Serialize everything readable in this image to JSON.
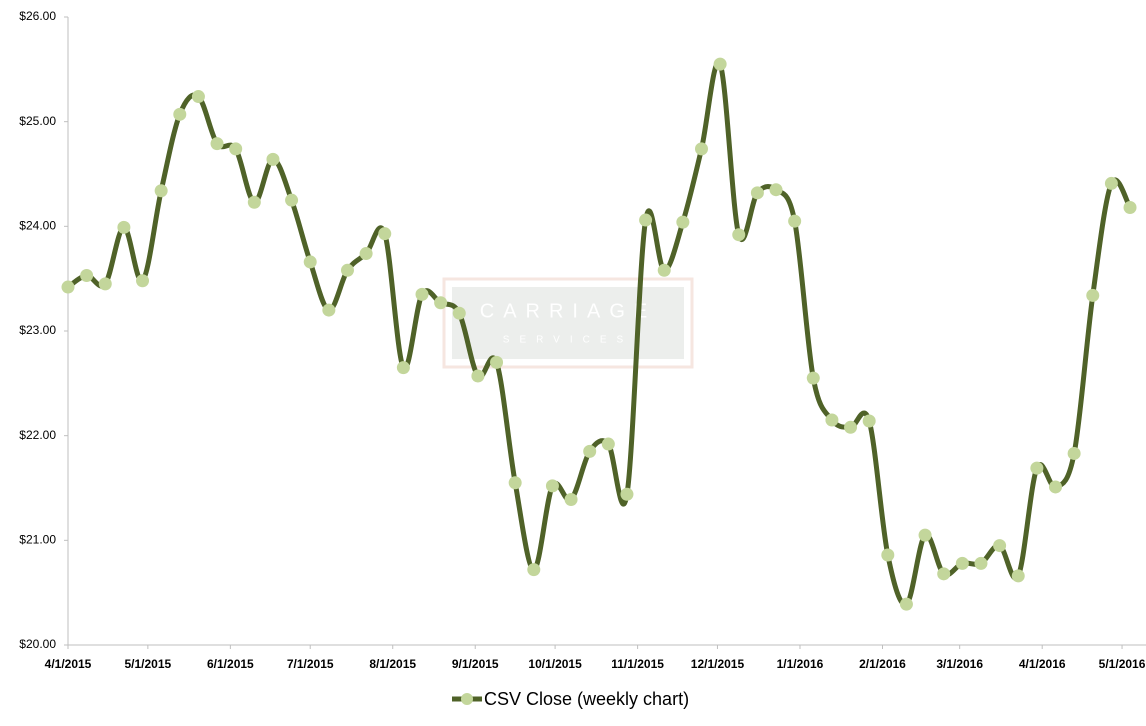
{
  "chart_data": {
    "type": "line",
    "x": [
      "2015-04-01",
      "2015-04-08",
      "2015-04-15",
      "2015-04-22",
      "2015-04-29",
      "2015-05-06",
      "2015-05-13",
      "2015-05-20",
      "2015-05-27",
      "2015-06-03",
      "2015-06-10",
      "2015-06-17",
      "2015-06-24",
      "2015-07-01",
      "2015-07-08",
      "2015-07-15",
      "2015-07-22",
      "2015-07-29",
      "2015-08-05",
      "2015-08-12",
      "2015-08-19",
      "2015-08-26",
      "2015-09-02",
      "2015-09-09",
      "2015-09-16",
      "2015-09-23",
      "2015-09-30",
      "2015-10-07",
      "2015-10-14",
      "2015-10-21",
      "2015-10-28",
      "2015-11-04",
      "2015-11-11",
      "2015-11-18",
      "2015-11-25",
      "2015-12-02",
      "2015-12-09",
      "2015-12-16",
      "2015-12-23",
      "2015-12-30",
      "2016-01-06",
      "2016-01-13",
      "2016-01-20",
      "2016-01-27",
      "2016-02-03",
      "2016-02-10",
      "2016-02-17",
      "2016-02-24",
      "2016-03-02",
      "2016-03-09",
      "2016-03-16",
      "2016-03-23",
      "2016-03-30",
      "2016-04-06",
      "2016-04-13",
      "2016-04-20",
      "2016-04-27",
      "2016-05-04"
    ],
    "series": [
      {
        "name": "CSV Close (weekly chart)",
        "color": "#4f6228",
        "marker_color": "#c3d69b",
        "values": [
          23.42,
          23.53,
          23.45,
          23.99,
          23.48,
          24.34,
          25.07,
          25.24,
          24.79,
          24.74,
          24.23,
          24.64,
          24.25,
          23.66,
          23.2,
          23.58,
          23.74,
          23.93,
          22.65,
          23.35,
          23.27,
          23.17,
          22.57,
          22.7,
          21.55,
          20.72,
          21.52,
          21.39,
          21.85,
          21.92,
          21.44,
          24.06,
          23.58,
          24.04,
          24.74,
          25.55,
          23.92,
          24.32,
          24.35,
          24.05,
          22.55,
          22.15,
          22.08,
          22.14,
          20.86,
          20.39,
          21.05,
          20.68,
          20.78,
          20.78,
          20.95,
          20.66,
          21.69,
          21.51,
          21.83,
          23.34,
          24.41,
          24.18
        ]
      }
    ],
    "xlim": [
      "2015-04-01",
      "2016-05-10"
    ],
    "xticks": [
      {
        "value": "2015-04-01",
        "label": "4/1/2015"
      },
      {
        "value": "2015-05-01",
        "label": "5/1/2015"
      },
      {
        "value": "2015-06-01",
        "label": "6/1/2015"
      },
      {
        "value": "2015-07-01",
        "label": "7/1/2015"
      },
      {
        "value": "2015-08-01",
        "label": "8/1/2015"
      },
      {
        "value": "2015-09-01",
        "label": "9/1/2015"
      },
      {
        "value": "2015-10-01",
        "label": "10/1/2015"
      },
      {
        "value": "2015-11-01",
        "label": "11/1/2015"
      },
      {
        "value": "2015-12-01",
        "label": "12/1/2015"
      },
      {
        "value": "2016-01-01",
        "label": "1/1/2016"
      },
      {
        "value": "2016-02-01",
        "label": "2/1/2016"
      },
      {
        "value": "2016-03-01",
        "label": "3/1/2016"
      },
      {
        "value": "2016-04-01",
        "label": "4/1/2016"
      },
      {
        "value": "2016-05-01",
        "label": "5/1/2016"
      }
    ],
    "ylim": [
      20,
      26
    ],
    "yticks": [
      {
        "value": 20,
        "label": "$20.00"
      },
      {
        "value": 21,
        "label": "$21.00"
      },
      {
        "value": 22,
        "label": "$22.00"
      },
      {
        "value": 23,
        "label": "$23.00"
      },
      {
        "value": 24,
        "label": "$24.00"
      },
      {
        "value": 25,
        "label": "$25.00"
      },
      {
        "value": 26,
        "label": "$26.00"
      }
    ],
    "watermark": [
      "CARRIAGE",
      "SERVICES"
    ]
  }
}
